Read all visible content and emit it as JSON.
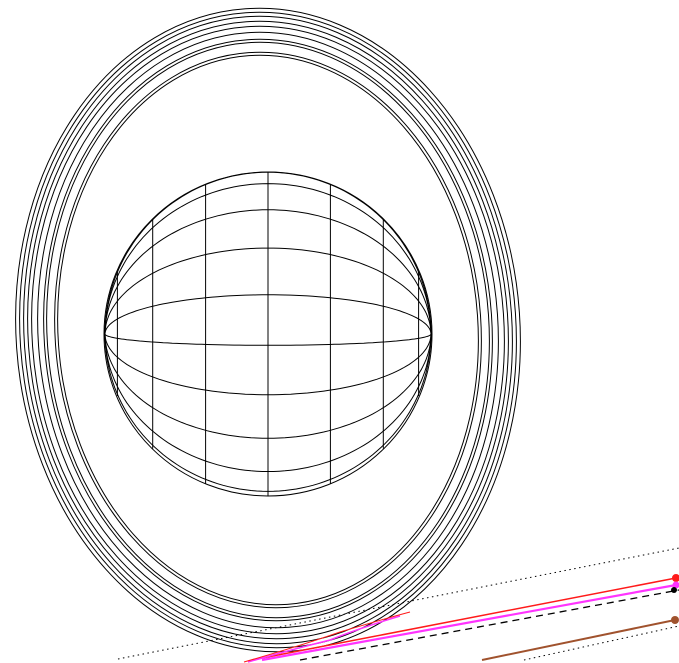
{
  "diagram": {
    "background": "#ffffff",
    "line_color": "#000000",
    "rings": {
      "count": 10
    },
    "globe": {
      "meridians": 20,
      "parallels": 7
    },
    "path_colors": {
      "red": "#ff1a1a",
      "magenta": "#ff33ff",
      "brown": "#a0522d",
      "dashed": "#000000",
      "dotted": "#000000"
    }
  }
}
